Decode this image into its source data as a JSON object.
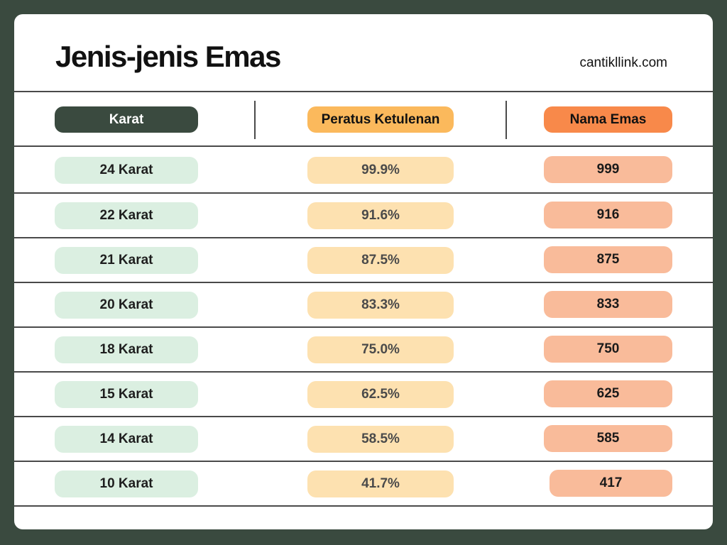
{
  "title": "Jenis-jenis Emas",
  "site": "cantikllink.com",
  "headers": {
    "karat": "Karat",
    "peratus": "Peratus Ketulenan",
    "nama": "Nama Emas"
  },
  "rows": [
    {
      "karat": "24 Karat",
      "peratus": "99.9%",
      "nama": "999"
    },
    {
      "karat": "22 Karat",
      "peratus": "91.6%",
      "nama": "916"
    },
    {
      "karat": "21 Karat",
      "peratus": "87.5%",
      "nama": "875"
    },
    {
      "karat": "20 Karat",
      "peratus": "83.3%",
      "nama": "833"
    },
    {
      "karat": "18 Karat",
      "peratus": "75.0%",
      "nama": "750"
    },
    {
      "karat": "15 Karat",
      "peratus": "62.5%",
      "nama": "625"
    },
    {
      "karat": "14 Karat",
      "peratus": "58.5%",
      "nama": "585"
    },
    {
      "karat": "10 Karat",
      "peratus": "41.7%",
      "nama": "417"
    }
  ],
  "colors": {
    "frame": "#3a4a3f",
    "karat_header": "#3a4a3f",
    "peratus_header": "#fbb95c",
    "nama_header": "#f8894a",
    "karat_cell": "#dbefe1",
    "peratus_cell": "#fde1b0",
    "nama_cell": "#f9bb9a"
  }
}
